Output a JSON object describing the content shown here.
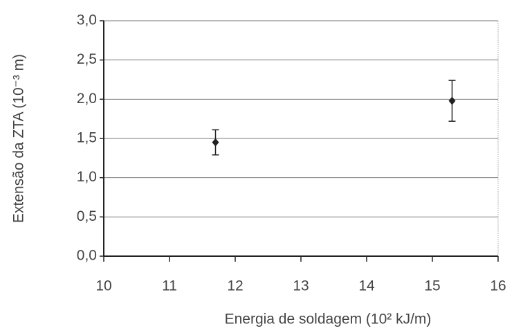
{
  "chart_data": {
    "type": "scatter",
    "xlabel": "Energia de soldagem (10² kJ/m)",
    "ylabel": "Extensão da ZTA  (10⁻³ m)",
    "x": [
      11.7,
      15.3
    ],
    "values": [
      1.45,
      1.98
    ],
    "errors": [
      0.16,
      0.26
    ],
    "color": "#222222",
    "xlim": [
      10,
      16
    ],
    "xticks": [
      10,
      11,
      12,
      13,
      14,
      15,
      16
    ],
    "ylim": [
      0,
      3
    ],
    "yticks": [
      {
        "value": 0,
        "label": "0,0"
      },
      {
        "value": 0.5,
        "label": "0,5"
      },
      {
        "value": 1,
        "label": "1,0"
      },
      {
        "value": 1.5,
        "label": "1,5"
      },
      {
        "value": 2,
        "label": "2,0"
      },
      {
        "value": 2.5,
        "label": "2,5"
      },
      {
        "value": 3,
        "label": "3,0"
      }
    ],
    "grid": true
  }
}
